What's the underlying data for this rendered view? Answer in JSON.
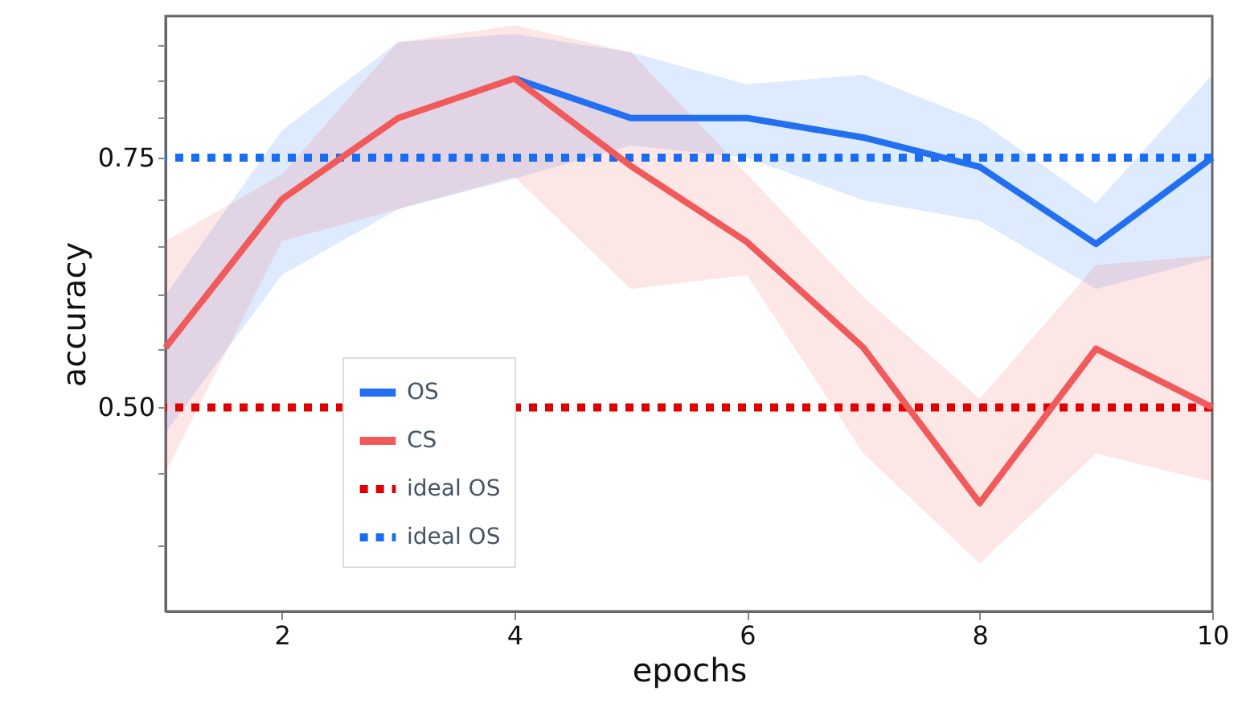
{
  "chart_data": {
    "type": "line",
    "xlabel": "epochs",
    "ylabel": "accuracy",
    "x": [
      1,
      2,
      3,
      4,
      5,
      6,
      7,
      8,
      9,
      10
    ],
    "series": [
      {
        "name": "OS",
        "color": "#2270f0",
        "values": [
          null,
          null,
          null,
          0.853,
          0.8,
          0.8,
          0.775,
          0.739,
          0.652,
          0.75
        ],
        "lower": [
          0.48,
          0.62,
          0.69,
          0.725,
          0.765,
          0.75,
          0.7,
          0.677,
          0.606,
          0.637
        ],
        "upper": [
          0.6,
          0.784,
          0.905,
          0.917,
          0.89,
          0.845,
          0.858,
          0.796,
          0.697,
          0.858
        ]
      },
      {
        "name": "CS",
        "color": "#f05a5a",
        "values": [
          0.551,
          0.701,
          0.8,
          0.853,
          0.74,
          0.654,
          0.551,
          0.428,
          0.55,
          0.5
        ],
        "lower": [
          0.45,
          0.655,
          0.69,
          0.727,
          0.606,
          0.62,
          0.464,
          0.388,
          0.464,
          0.443
        ],
        "upper": [
          0.655,
          0.73,
          0.905,
          0.93,
          0.89,
          0.73,
          0.598,
          0.507,
          0.63,
          0.64
        ]
      }
    ],
    "ref_lines": [
      {
        "axis": "y",
        "value": 0.5,
        "label": "ideal OS",
        "color": "#e00000",
        "line_style": "dotted"
      },
      {
        "axis": "y",
        "value": 0.75,
        "label": "ideal OS",
        "color": "#1a6cf0",
        "line_style": "dotted"
      }
    ],
    "xlim": [
      1,
      10
    ],
    "xticks": [
      2,
      4,
      6,
      8,
      10
    ],
    "log": "y",
    "ylim": [
      0.359,
      0.944
    ],
    "yticks": [
      {
        "value": 0.4,
        "label": null
      },
      {
        "value": 0.45,
        "label": null
      },
      {
        "value": 0.5,
        "label": "0.50"
      },
      {
        "value": 0.55,
        "label": null
      },
      {
        "value": 0.6,
        "label": null
      },
      {
        "value": 0.65,
        "label": null
      },
      {
        "value": 0.7,
        "label": null
      },
      {
        "value": 0.75,
        "label": "0.75"
      },
      {
        "value": 0.8,
        "label": null
      },
      {
        "value": 0.85,
        "label": null
      },
      {
        "value": 0.9,
        "label": null
      }
    ],
    "grid": false,
    "legend": "bottom left",
    "line_style": "solid",
    "marker": "none"
  }
}
